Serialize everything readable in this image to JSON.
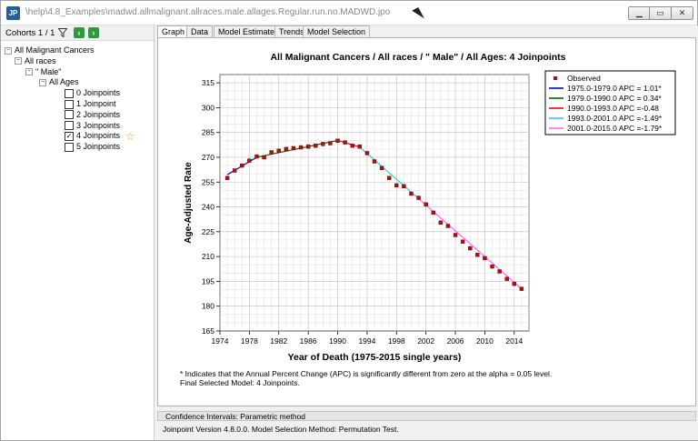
{
  "window": {
    "title": "\\help\\4.8_Examples\\madwd.allmalignant.allraces.male.allages.Regular.run.no.MADWD.jpo",
    "app_icon": "JP",
    "min_icon": "minimize-icon",
    "max_icon": "maximize-icon",
    "close_icon": "close-icon"
  },
  "left_panel": {
    "cohorts_label": "Cohorts 1 / 1",
    "tree": [
      {
        "label": "All Malignant Cancers",
        "level": 0,
        "expander": "−"
      },
      {
        "label": "All races",
        "level": 1,
        "expander": "−"
      },
      {
        "label": "\" Male\"",
        "level": 2,
        "expander": "−"
      },
      {
        "label": "All Ages",
        "level": 3,
        "expander": "−"
      },
      {
        "label": "0 Joinpoints",
        "level": 4,
        "checked": false
      },
      {
        "label": "1 Joinpoint",
        "level": 4,
        "checked": false
      },
      {
        "label": "2 Joinpoints",
        "level": 4,
        "checked": false
      },
      {
        "label": "3 Joinpoints",
        "level": 4,
        "checked": false
      },
      {
        "label": "4 Joinpoints",
        "level": 4,
        "checked": true,
        "star": true
      },
      {
        "label": "5 Joinpoints",
        "level": 4,
        "checked": false
      }
    ]
  },
  "tabs": [
    "Graph",
    "Data",
    "Model Estimates",
    "Trends",
    "Model Selection"
  ],
  "active_tab": "Graph",
  "chart_data": {
    "type": "scatter",
    "title": "All Malignant Cancers / All races / \"  Male\" / All Ages: 4 Joinpoints",
    "xlabel": "Year of Death (1975-2015 single years)",
    "ylabel": "Age-Adjusted Rate",
    "xlim": [
      1974,
      2016
    ],
    "ylim": [
      165,
      320
    ],
    "x_ticks": [
      1974,
      1978,
      1982,
      1986,
      1990,
      1994,
      1998,
      2002,
      2006,
      2010,
      2014
    ],
    "y_ticks": [
      165,
      180,
      195,
      210,
      225,
      240,
      255,
      270,
      285,
      300,
      315
    ],
    "grid": true,
    "legend_position": "top-right",
    "observed": {
      "name": "Observed",
      "color": "#b01010",
      "x": [
        1975,
        1976,
        1977,
        1978,
        1979,
        1980,
        1981,
        1982,
        1983,
        1984,
        1985,
        1986,
        1987,
        1988,
        1989,
        1990,
        1991,
        1992,
        1993,
        1994,
        1995,
        1996,
        1997,
        1998,
        1999,
        2000,
        2001,
        2002,
        2003,
        2004,
        2005,
        2006,
        2007,
        2008,
        2009,
        2010,
        2011,
        2012,
        2013,
        2014,
        2015
      ],
      "y": [
        257.5,
        262,
        265,
        268,
        270.5,
        270,
        273,
        274,
        275,
        275.5,
        276,
        276.5,
        277,
        278,
        278.5,
        280,
        279,
        277,
        276.5,
        272.5,
        267.5,
        263.5,
        257.5,
        253,
        252.5,
        248,
        245.5,
        241.5,
        236.5,
        230.5,
        228.5,
        223,
        219,
        215,
        211,
        209,
        204,
        201,
        196.5,
        193.5,
        190.5
      ]
    },
    "segments": [
      {
        "name": "1975.0-1979.0 APC  =  1.01*",
        "color": "#0000cc",
        "x": [
          1975,
          1979
        ],
        "y": [
          259.5,
          270.0
        ]
      },
      {
        "name": "1979.0-1990.0 APC  =  0.34*",
        "color": "#006600",
        "x": [
          1979,
          1990
        ],
        "y": [
          270.0,
          280.2
        ]
      },
      {
        "name": "1990.0-1993.0 APC  =-0.48",
        "color": "#ff0000",
        "x": [
          1990,
          1993
        ],
        "y": [
          280.2,
          276.2
        ]
      },
      {
        "name": "1993.0-2001.0 APC  =-1.49*",
        "color": "#33cccc",
        "x": [
          1993,
          2001
        ],
        "y": [
          276.2,
          245.0
        ]
      },
      {
        "name": "2001.0-2015.0 APC  =-1.79*",
        "color": "#ff66ff",
        "x": [
          2001,
          2015
        ],
        "y": [
          245.0,
          190.5
        ]
      }
    ]
  },
  "footnotes": {
    "line1": "* Indicates that the Annual Percent Change (APC) is significantly different from zero at the alpha = 0.05 level.",
    "line2": "Final Selected Model: 4 Joinpoints."
  },
  "confidence_bar": "Confidence Intervals:  Parametric method",
  "status_bar": "Joinpoint Version 4.8.0.0.   Model Selection Method: Permutation Test."
}
